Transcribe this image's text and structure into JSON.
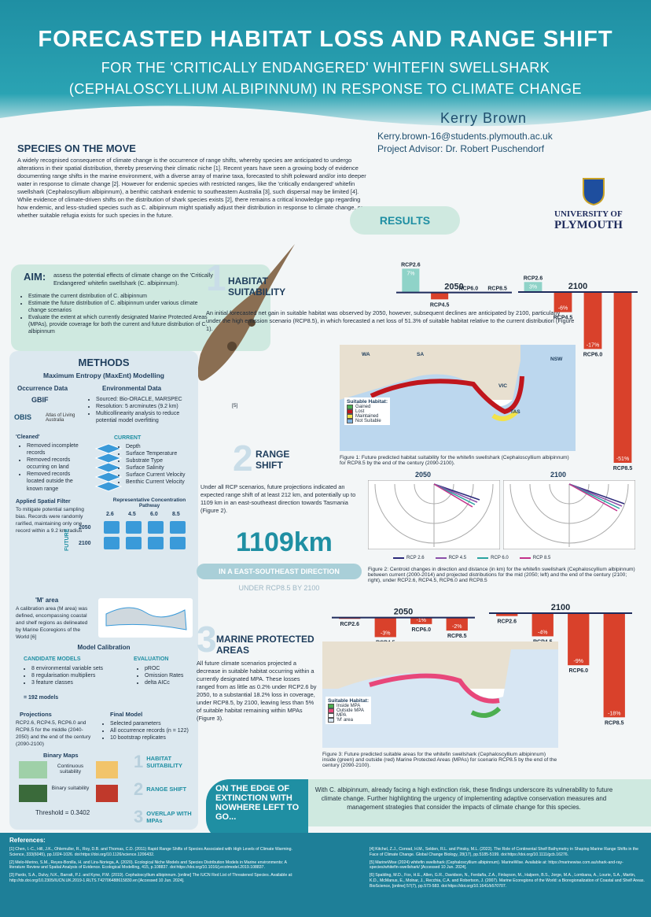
{
  "header": {
    "title": "FORECASTED HABITAT LOSS AND RANGE SHIFT",
    "subtitle_1": "FOR THE 'CRITICALLY ENDANGERED' WHITEFIN SWELLSHARK",
    "subtitle_2": "(CEPHALOSCYLLIUM ALBIPINNUM) IN RESPONSE TO CLIMATE CHANGE",
    "author": "Kerry Brown",
    "email": "Kerry.brown-16@students.plymouth.ac.uk",
    "advisor": "Project Advisor: Dr. Robert Puschendorf",
    "university_1": "UNIVERSITY OF",
    "university_2": "PLYMOUTH"
  },
  "intro": {
    "heading": "SPECIES ON THE MOVE",
    "text": "A widely recognised consequence of climate change is the occurrence of range shifts, whereby species are anticipated to undergo alterations in their spatial distribution, thereby preserving their climatic niche [1]. Recent years have seen a growing body of evidence documenting range shifts in the marine environment, with a diverse array of marine taxa, forecasted to shift poleward and/or into deeper water in response to climate change [2]. However for endemic species with restricted ranges, like the 'critically endangered' whitefin swellshark (Cephaloscyllium albipinnum), a benthic catshark endemic to southeastern Australia [3], such dispersal may be limited [4]. While evidence of climate-driven shifts on the distribution of shark species exists [2], there remains a critical knowledge gap regarding how endemic, and less-studied species such as C. albipinnum might spatially adjust their distribution in response to climate change, or whether suitable refugia exists for such species in the future."
  },
  "aim": {
    "label": "AIM:",
    "text": "assess the potential effects of climate change on the 'Critically Endangered' whitefin swellshark (C. albipinnum).",
    "items": [
      "Estimate the current distribution of C. albipinnum",
      "Estimate the future distribution of C. albipinnum under various climate change scenarios",
      "Evaluate the extent at which currently designated Marine Protected Areas (MPAs), provide coverage for both the current and future distribution of C. albipinnum"
    ],
    "image_ref": "[5]"
  },
  "methods": {
    "heading": "METHODS",
    "subheading": "Maximum Entropy (MaxEnt) Modelling",
    "occurrence": "Occurrence Data",
    "logos": [
      "GBIF",
      "OBIS",
      "Atlas of Living Australia"
    ],
    "environmental": "Environmental Data",
    "env_items": [
      "Sourced: Bio-ORACLE, MARSPEC",
      "Resolution: 5 arcminutes (9.2 km)",
      "Multicollinearity analysis to reduce potential model overfitting"
    ],
    "cleaned": "'Cleaned'",
    "cleaned_items": [
      "Removed incomplete records",
      "Removed records occurring on land",
      "Removed records located outside the known range"
    ],
    "filter_heading": "Applied Spatial Filter",
    "filter_text": "To mitigate potential sampling bias. Records were randomly rarified, maintaining only one record within a 9.2 km radius",
    "current": "CURRENT",
    "current_items": [
      "Depth",
      "Surface Temperature",
      "Substrate Type",
      "Surface Salinity",
      "Surface Current Velocity",
      "Benthic Current Velocity"
    ],
    "rcp_heading": "Representative Concentration Pathway",
    "rcps": [
      "2.6",
      "4.5",
      "6.0",
      "8.5"
    ],
    "future": "FUTURE",
    "years": [
      "2050",
      "2100"
    ],
    "m_heading": "'M' area",
    "m_text": "A calibration area (M area) was defined, encompassing coastal and shelf regions as delineated by Marine Ecoregions of the World [6]",
    "calibration": "Model Calibration",
    "candidate": "CANDIDATE MODELS",
    "candidate_items": [
      "8 environmental variable sets",
      "8 regularisation multipliers",
      "3 feature classes"
    ],
    "total": "= 192 models",
    "evaluation": "EVALUATION",
    "evaluation_items": [
      "pROC",
      "Omission Rates",
      "delta AICc"
    ],
    "projections": "Projections",
    "projections_text": "RCP2.6, RCP4.5, RCP6.0 and RCP8.5 for the middle (2040-2050) and the end of the century (2090-2100)",
    "final": "Final Model",
    "final_items": [
      "Selected parameters",
      "All occurrence records (n = 122)",
      "10 bootstrap replicates"
    ],
    "binary": "Binary Maps",
    "continuous": "Continuous suitability",
    "binary_s": "Binary suitability",
    "threshold": "Threshold = 0.3402",
    "steps": [
      {
        "n": "1",
        "label": "HABITAT SUITABILITY"
      },
      {
        "n": "2",
        "label": "RANGE SHIFT"
      },
      {
        "n": "3",
        "label": "OVERLAP WITH MPAs"
      }
    ]
  },
  "results": {
    "heading": "RESULTS",
    "s1": {
      "n": "1",
      "title": "HABITAT SUITABILITY",
      "text": "An initial forecasted net gain in suitable habitat was observed by 2050, however, subsequent declines are anticipated by 2100, particularly under the high emission scenario (RCP8.5), in which forecasted a net loss of 51.3% of suitable habitat relative to the current distribution (Figure 1).",
      "regions": [
        "WA",
        "SA",
        "NSW",
        "VIC",
        "TAS"
      ],
      "legend_title": "Suitable Habitat:",
      "legend": [
        {
          "label": "Gained",
          "color": "#4caf50"
        },
        {
          "label": "Lost",
          "color": "#c0161d"
        },
        {
          "label": "Maintained",
          "color": "#f2e24a"
        },
        {
          "label": "Not Suitable",
          "color": "#7fb3de"
        }
      ],
      "caption": "Figure 1: Future predicted habitat suitability for the whitefin swellshark (Cephaloscyllium albipinnum) for RCP8.5 by the end of the century (2090-2100)."
    },
    "s2": {
      "n": "2",
      "title": "RANGE SHIFT",
      "text": "Under all RCP scenarios, future projections indicated an expected range shift of at least 212 km, and potentially up to 1109 km in an east-southeast direction towards Tasmania (Figure 2).",
      "big": "1109km",
      "direction": "IN A EAST-SOUTHEAST DIRECTION",
      "under": "UNDER RCP8.5 BY 2100",
      "roses": [
        "2050",
        "2100"
      ],
      "legend": [
        {
          "label": "RCP 2.6",
          "color": "#2b2a7a"
        },
        {
          "label": "RCP 4.5",
          "color": "#8a4fa8"
        },
        {
          "label": "RCP 6.0",
          "color": "#2aa3a0"
        },
        {
          "label": "RCP 8.5",
          "color": "#c2318a"
        }
      ],
      "caption": "Figure 2: Centroid changes in direction and distance (in km) for the whitefin swellshark (Cephaloscyllium albipinnum) between current (2000-2014) and projected distributions for the mid (2050; left) and the end of the century (2100; right), under RCP2.6, RCP4.5, RCP6.0 and RCP8.5"
    },
    "s3": {
      "n": "3",
      "title": "MARINE PROTECTED AREAS",
      "text": "All future climate scenarios projected a decrease in suitable habitat occurring within a currently designated MPA. These losses ranged from as little as 0.2% under RCP2.6 by 2050, to a substantial 18.2% loss in coverage, under RCP8.5, by 2100, leaving less than 5% of suitable habitat remaining within MPAs (Figure 3).",
      "legend_title": "Suitable Habitat:",
      "legend": [
        {
          "label": "Inside MPA",
          "color": "#4caf50"
        },
        {
          "label": "Outside MPA",
          "color": "#e8477a"
        },
        {
          "label": "MPA",
          "color": "#ffffff"
        },
        {
          "label": "'M' area",
          "color": "#d7e6f3"
        }
      ],
      "caption": "Figure 3: Future predicted suitable areas for the whitefin swellshark (Cephaloscyllium albipinnum) inside (green) and outside (red) Marine Protected Areas (MPAs) for scenario RCP8.5 by the end of the century (2090-2100)."
    }
  },
  "conclusion": {
    "heading": "ON THE EDGE OF EXTINCTION WITH NOWHERE LEFT TO GO...",
    "text": "With C. albipinnum, already facing a high extinction risk, these findings underscore its vulnerability to future climate change. Further highlighting the urgency of implementing adaptive conservation measures and management strategies that consider the impacts of climate change for this species."
  },
  "references": {
    "heading": "References:",
    "items": [
      "[1] Chen, I.-C., Hill, J.K., Ohlemuller, R., Roy, D.B. and Thomas, C.D. (2011) Rapid Range Shifts of Species Associated with High Levels of Climate Warming. Science, 333(6045), pp.1024-1026. doi:https://doi.org/10.1126/science.1206432.",
      "[2] Melo-Merino, S.M., Reyes-Bonilla, H. and Lira-Noriega, A. (2020). Ecological Niche Models and Species Distribution Models in Marine environments: A literature Review and Spatial Analysis of Evidence. Ecological Modelling, 415, p.108837. doi:https://doi.org/10.1016/j.ecolmodel.2019.108837.",
      "[3] Pardo, S.A., Dulvy, N.K., Barratt, P.J. and Kyne, P.M. (2019). Cephaloscyllium albipinnum. [online] The IUCN Red List of Threatened Species. Available at: http://dx.doi.org/10.2305/IUCN.UK.2019-1.RLTS.T42706488615830.en [Accessed 10 Jun. 2024].",
      "[4] Kitchel, Z.J., Conrad, H.M., Selden, R.L. and Pinsky, M.L. (2022). The Role of Continental Shelf Bathymetry in Shaping Marine Range Shifts in the Face of Climate Change. Global Change Biology, 28(17), pp.5185-5199. doi:https://doi.org/10.1111/gcb.16276.",
      "[5] MarineWise (2024) whitefin swellshark (Cephaloscyllium albipinnum). MarineWise. Available at: https://marinewise.com.au/shark-and-ray-species/whitefin-swellshark/ [Accessed 10 Jun. 2024].",
      "[6] Spalding, M.D., Fox, H.E., Allen, G.R., Davidson, N., Ferdaña, Z.A., Finlayson, M., Halpern, B.S., Jorge, M.A., Lombana, A., Lourie, S.A., Martin, K.D., McManus, E., Molnar, J., Recchia, C.A. and Robertson, J. (2007). Marine Ecoregions of the World: a Bioregionalization of Coastal and Shelf Areas. BioScience, [online] 57(7), pp.573-583. doi:https://doi.org/10.1641/b570707."
    ]
  },
  "chart_data": [
    {
      "type": "bar",
      "title": "2050",
      "categories": [
        "RCP2.6",
        "RCP4.5",
        "RCP6.0",
        "RCP8.5"
      ],
      "values": [
        7,
        -2,
        0,
        0
      ],
      "value_labels": [
        "7%",
        null,
        null,
        null
      ],
      "ylim": [
        -10,
        8
      ],
      "positive_color": "#8fd3c8",
      "negative_color": "#d9412b"
    },
    {
      "type": "bar",
      "title": "2100",
      "categories": [
        "RCP2.6",
        "RCP4.5",
        "RCP6.0",
        "RCP8.5"
      ],
      "values": [
        3,
        -6,
        -17,
        -51
      ],
      "value_labels": [
        "3%",
        "-6%",
        "-17%",
        "-51%"
      ],
      "ylim": [
        -55,
        8
      ],
      "positive_color": "#8fd3c8",
      "negative_color": "#d9412b"
    },
    {
      "type": "bar",
      "title": "2050",
      "categories": [
        "RCP2.6",
        "RCP4.5",
        "RCP6.0",
        "RCP8.5"
      ],
      "values": [
        -0.2,
        -3,
        -1,
        -2
      ],
      "value_labels": [
        null,
        "-3%",
        "-1%",
        "-2%"
      ],
      "ylim": [
        -5,
        2
      ],
      "positive_color": "#8fd3c8",
      "negative_color": "#d9412b"
    },
    {
      "type": "bar",
      "title": "2100",
      "categories": [
        "RCP2.6",
        "RCP4.5",
        "RCP6.0",
        "RCP8.5"
      ],
      "values": [
        -0.5,
        -4,
        -9,
        -18
      ],
      "value_labels": [
        null,
        "-4%",
        "-9%",
        "-18%"
      ],
      "ylim": [
        -20,
        1.5
      ],
      "positive_color": "#8fd3c8",
      "negative_color": "#d9412b"
    }
  ]
}
